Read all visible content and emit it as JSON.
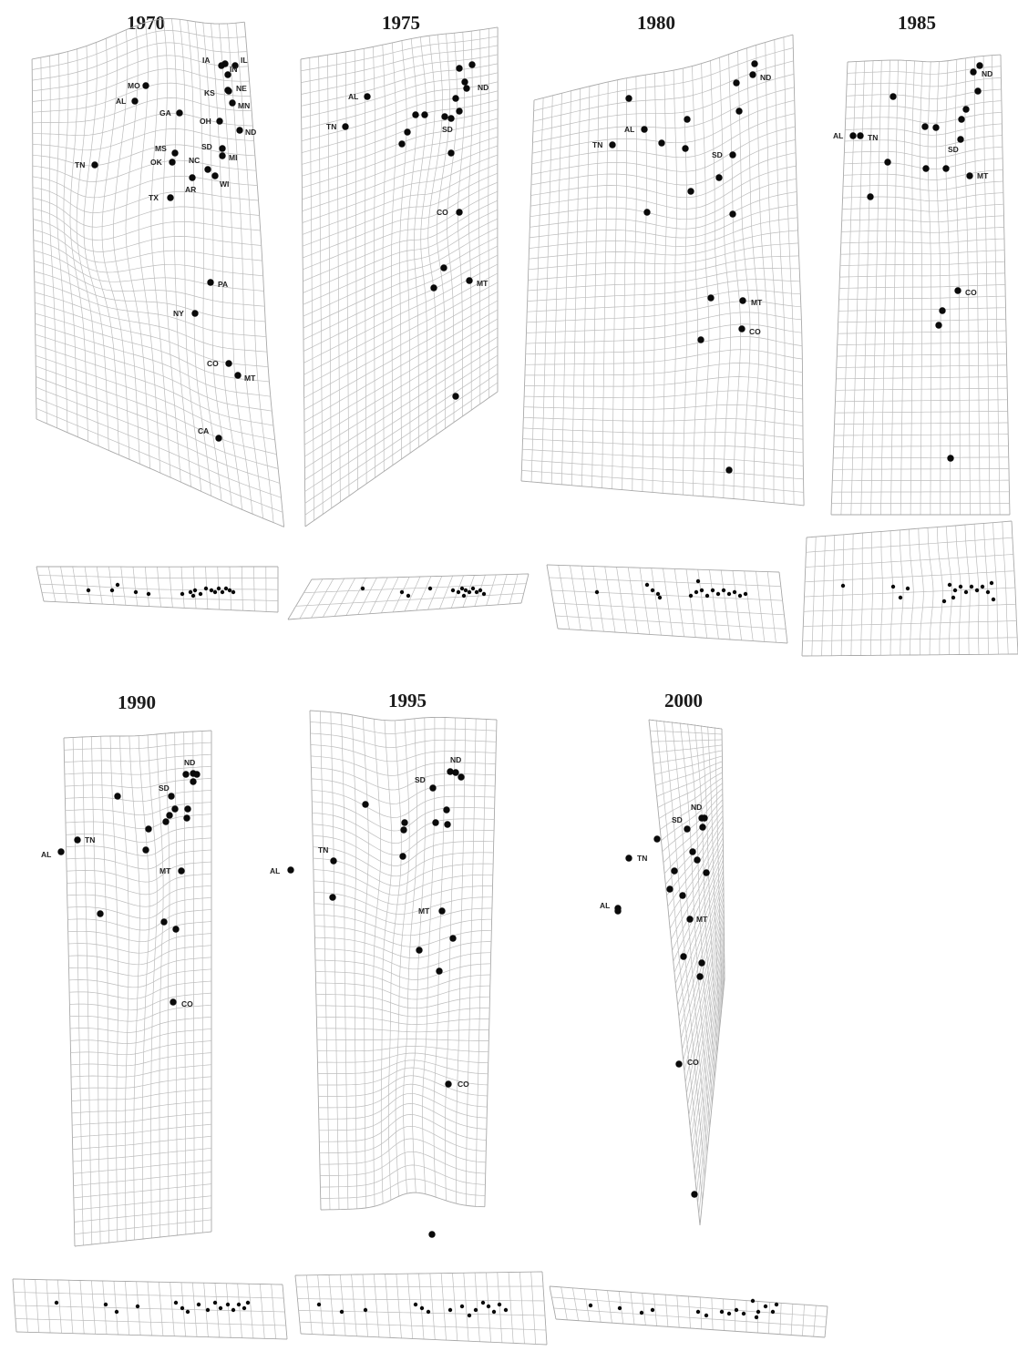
{
  "panels": [
    {
      "year": "1970",
      "main_points": [
        {
          "label": "IA"
        },
        {
          "label": "IL"
        },
        {
          "label": "IN"
        },
        {
          "label": "NE"
        },
        {
          "label": "KS"
        },
        {
          "label": "MN"
        },
        {
          "label": "MO"
        },
        {
          "label": "AL"
        },
        {
          "label": "GA"
        },
        {
          "label": "OH"
        },
        {
          "label": "ND"
        },
        {
          "label": "MS"
        },
        {
          "label": "OK"
        },
        {
          "label": "NC"
        },
        {
          "label": "SD"
        },
        {
          "label": "MI"
        },
        {
          "label": "TN"
        },
        {
          "label": "AR"
        },
        {
          "label": "WI"
        },
        {
          "label": "TX"
        },
        {
          "label": "PA"
        },
        {
          "label": "NY"
        },
        {
          "label": "CO"
        },
        {
          "label": "MT"
        },
        {
          "label": "CA"
        },
        {
          "label": ""
        }
      ]
    },
    {
      "year": "1975",
      "main_points": [
        {
          "label": "ND"
        },
        {
          "label": "AL"
        },
        {
          "label": "TN"
        },
        {
          "label": "SD"
        },
        {
          "label": "CO"
        },
        {
          "label": "MT"
        },
        {
          "label": ""
        },
        {
          "label": ""
        },
        {
          "label": ""
        },
        {
          "label": ""
        },
        {
          "label": ""
        },
        {
          "label": ""
        },
        {
          "label": ""
        },
        {
          "label": ""
        },
        {
          "label": ""
        },
        {
          "label": ""
        },
        {
          "label": ""
        },
        {
          "label": ""
        },
        {
          "label": ""
        },
        {
          "label": ""
        }
      ]
    },
    {
      "year": "1980",
      "main_points": [
        {
          "label": "ND"
        },
        {
          "label": "AL"
        },
        {
          "label": "TN"
        },
        {
          "label": "SD"
        },
        {
          "label": "MT"
        },
        {
          "label": "CO"
        },
        {
          "label": ""
        },
        {
          "label": ""
        },
        {
          "label": ""
        },
        {
          "label": ""
        },
        {
          "label": ""
        },
        {
          "label": ""
        },
        {
          "label": ""
        },
        {
          "label": ""
        },
        {
          "label": ""
        },
        {
          "label": ""
        },
        {
          "label": ""
        },
        {
          "label": ""
        },
        {
          "label": ""
        }
      ]
    },
    {
      "year": "1985",
      "main_points": [
        {
          "label": "ND"
        },
        {
          "label": "AL"
        },
        {
          "label": "TN"
        },
        {
          "label": "SD"
        },
        {
          "label": "MT"
        },
        {
          "label": "CO"
        },
        {
          "label": ""
        },
        {
          "label": ""
        },
        {
          "label": ""
        },
        {
          "label": ""
        },
        {
          "label": ""
        },
        {
          "label": ""
        },
        {
          "label": ""
        },
        {
          "label": ""
        },
        {
          "label": ""
        },
        {
          "label": ""
        },
        {
          "label": ""
        },
        {
          "label": ""
        },
        {
          "label": ""
        }
      ]
    },
    {
      "year": "1990",
      "main_points": [
        {
          "label": "ND"
        },
        {
          "label": "SD"
        },
        {
          "label": "TN"
        },
        {
          "label": "AL"
        },
        {
          "label": "MT"
        },
        {
          "label": "CO"
        },
        {
          "label": ""
        },
        {
          "label": ""
        },
        {
          "label": ""
        },
        {
          "label": ""
        },
        {
          "label": ""
        },
        {
          "label": ""
        },
        {
          "label": ""
        },
        {
          "label": ""
        },
        {
          "label": ""
        },
        {
          "label": ""
        },
        {
          "label": ""
        },
        {
          "label": ""
        },
        {
          "label": ""
        },
        {
          "label": ""
        }
      ]
    },
    {
      "year": "1995",
      "main_points": [
        {
          "label": "ND"
        },
        {
          "label": "SD"
        },
        {
          "label": "TN"
        },
        {
          "label": "AL"
        },
        {
          "label": "MT"
        },
        {
          "label": "CO"
        },
        {
          "label": ""
        },
        {
          "label": ""
        },
        {
          "label": ""
        },
        {
          "label": ""
        },
        {
          "label": ""
        },
        {
          "label": ""
        },
        {
          "label": ""
        },
        {
          "label": ""
        },
        {
          "label": ""
        },
        {
          "label": ""
        },
        {
          "label": ""
        },
        {
          "label": ""
        },
        {
          "label": ""
        },
        {
          "label": ""
        }
      ]
    },
    {
      "year": "2000",
      "main_points": [
        {
          "label": "ND"
        },
        {
          "label": "SD"
        },
        {
          "label": "TN"
        },
        {
          "label": "AL"
        },
        {
          "label": "MT"
        },
        {
          "label": "CO"
        },
        {
          "label": ""
        },
        {
          "label": ""
        },
        {
          "label": ""
        },
        {
          "label": ""
        },
        {
          "label": ""
        },
        {
          "label": ""
        },
        {
          "label": ""
        },
        {
          "label": ""
        },
        {
          "label": ""
        },
        {
          "label": ""
        },
        {
          "label": ""
        },
        {
          "label": ""
        },
        {
          "label": ""
        },
        {
          "label": ""
        }
      ]
    }
  ],
  "colors": {
    "grid": "#bdbdbd",
    "dot": "#0a0a0a",
    "text": "#1b1b1b"
  }
}
